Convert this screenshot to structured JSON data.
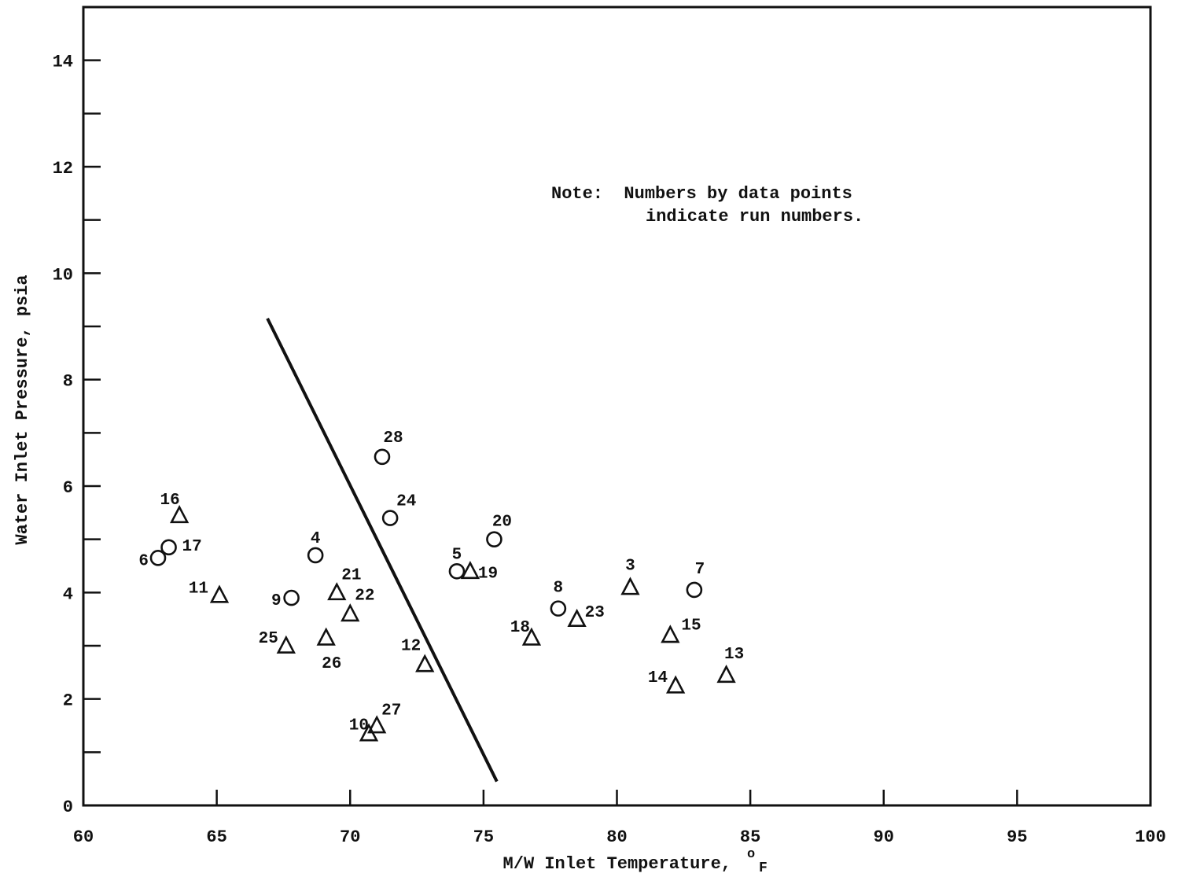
{
  "chart_data": {
    "type": "scatter",
    "title": "",
    "xlabel": "M/W Inlet Temperature,",
    "xlabel_unit_sup": "o",
    "xlabel_unit": "F",
    "ylabel": "Water Inlet Pressure, psia",
    "xlim": [
      60,
      100
    ],
    "ylim": [
      0,
      15
    ],
    "x_ticks": [
      60,
      65,
      70,
      75,
      80,
      85,
      90,
      95,
      100
    ],
    "y_ticks": [
      0,
      2,
      4,
      6,
      8,
      10,
      12,
      14
    ],
    "grid": false,
    "note": [
      "Note:  Numbers by data points",
      "indicate run numbers."
    ],
    "series": [
      {
        "marker": "circle",
        "points": [
          {
            "run": "4",
            "x": 68.7,
            "y": 4.7
          },
          {
            "run": "5",
            "x": 74.0,
            "y": 4.4
          },
          {
            "run": "6",
            "x": 62.8,
            "y": 4.65
          },
          {
            "run": "7",
            "x": 82.9,
            "y": 4.05
          },
          {
            "run": "8",
            "x": 77.8,
            "y": 3.7
          },
          {
            "run": "9",
            "x": 67.8,
            "y": 3.9
          },
          {
            "run": "17",
            "x": 63.2,
            "y": 4.85
          },
          {
            "run": "20",
            "x": 75.4,
            "y": 5.0
          },
          {
            "run": "24",
            "x": 71.5,
            "y": 5.4
          },
          {
            "run": "28",
            "x": 71.2,
            "y": 6.55
          }
        ]
      },
      {
        "marker": "triangle",
        "points": [
          {
            "run": "3",
            "x": 80.5,
            "y": 4.1
          },
          {
            "run": "10",
            "x": 70.7,
            "y": 1.35
          },
          {
            "run": "11",
            "x": 65.1,
            "y": 3.95
          },
          {
            "run": "12",
            "x": 72.8,
            "y": 2.65
          },
          {
            "run": "13",
            "x": 84.1,
            "y": 2.45
          },
          {
            "run": "14",
            "x": 82.2,
            "y": 2.25
          },
          {
            "run": "15",
            "x": 82.0,
            "y": 3.2
          },
          {
            "run": "16",
            "x": 63.6,
            "y": 5.45
          },
          {
            "run": "18",
            "x": 76.8,
            "y": 3.15
          },
          {
            "run": "19",
            "x": 74.5,
            "y": 4.4
          },
          {
            "run": "21",
            "x": 69.5,
            "y": 4.0
          },
          {
            "run": "22",
            "x": 70.0,
            "y": 3.6
          },
          {
            "run": "23",
            "x": 78.5,
            "y": 3.5
          },
          {
            "run": "25",
            "x": 67.6,
            "y": 3.0
          },
          {
            "run": "26",
            "x": 69.1,
            "y": 3.15
          },
          {
            "run": "27",
            "x": 71.0,
            "y": 1.5
          }
        ]
      }
    ],
    "line": {
      "points": [
        {
          "x": 66.9,
          "y": 9.15
        },
        {
          "x": 75.5,
          "y": 0.45
        }
      ]
    }
  }
}
